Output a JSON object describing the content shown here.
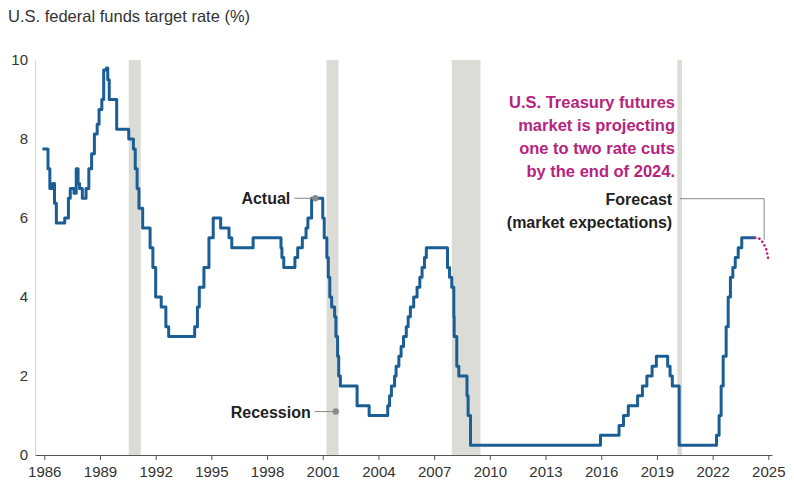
{
  "chart_data": {
    "type": "line",
    "title": "U.S. federal funds target rate (%)",
    "xlim": [
      1985.5,
      2025.2
    ],
    "xticks": [
      1986,
      1989,
      1992,
      1995,
      1998,
      2001,
      2004,
      2007,
      2010,
      2013,
      2016,
      2019,
      2022,
      2025
    ],
    "ylim": [
      0,
      10
    ],
    "yticks": [
      0,
      2,
      4,
      6,
      8,
      10
    ],
    "grid": false,
    "recessions": [
      [
        1990.55,
        1991.2
      ],
      [
        2001.2,
        2001.85
      ],
      [
        2007.95,
        2009.5
      ],
      [
        2020.1,
        2020.35
      ]
    ],
    "series": [
      {
        "type": "step",
        "color": "#1b5e96",
        "line_style": "solid",
        "x": [
          1985.9,
          1986.2,
          1986.3,
          1986.45,
          1986.55,
          1986.65,
          1987.1,
          1987.3,
          1987.4,
          1987.6,
          1987.72,
          1987.82,
          1987.9,
          1988.05,
          1988.25,
          1988.4,
          1988.55,
          1988.7,
          1988.85,
          1988.95,
          1989.1,
          1989.2,
          1989.35,
          1989.42,
          1989.5,
          1989.9,
          1990.55,
          1990.8,
          1990.9,
          1991.0,
          1991.1,
          1991.3,
          1991.7,
          1991.85,
          1992.0,
          1992.3,
          1992.55,
          1992.7,
          1994.1,
          1994.25,
          1994.35,
          1994.6,
          1994.87,
          1995.1,
          1995.5,
          1995.95,
          1996.1,
          1997.25,
          1998.75,
          1998.8,
          1998.9,
          1999.5,
          1999.65,
          1999.9,
          2000.1,
          2000.2,
          2000.4,
          2001.0,
          2001.08,
          2001.22,
          2001.3,
          2001.38,
          2001.48,
          2001.64,
          2001.71,
          2001.8,
          2001.86,
          2001.95,
          2002.85,
          2003.5,
          2004.5,
          2004.6,
          2004.7,
          2004.87,
          2004.95,
          2005.1,
          2005.22,
          2005.35,
          2005.5,
          2005.6,
          2005.72,
          2005.9,
          2006.08,
          2006.23,
          2006.35,
          2006.48,
          2006.58,
          2007.72,
          2007.83,
          2007.95,
          2008.06,
          2008.08,
          2008.22,
          2008.33,
          2008.77,
          2008.83,
          2008.96,
          2015.96,
          2016.96,
          2017.2,
          2017.46,
          2017.96,
          2018.22,
          2018.46,
          2018.74,
          2018.97,
          2019.58,
          2019.71,
          2019.83,
          2020.2,
          2022.21,
          2022.35,
          2022.46,
          2022.57,
          2022.73,
          2022.84,
          2022.96,
          2023.09,
          2023.22,
          2023.38,
          2023.57,
          2024.3
        ],
        "values": [
          7.75,
          7.25,
          6.75,
          6.875,
          6.375,
          5.875,
          6.0,
          6.5,
          6.75,
          6.625,
          7.25,
          6.875,
          6.75,
          6.5,
          6.75,
          7.25,
          7.625,
          8.125,
          8.375,
          8.75,
          9.0,
          9.75,
          9.8,
          9.5,
          9.0,
          8.25,
          8.0,
          7.75,
          7.25,
          6.75,
          6.25,
          5.75,
          5.25,
          4.75,
          4.0,
          3.75,
          3.25,
          3.0,
          3.25,
          3.75,
          4.25,
          4.75,
          5.5,
          6.0,
          5.75,
          5.5,
          5.25,
          5.5,
          5.25,
          5.0,
          4.75,
          5.0,
          5.25,
          5.5,
          5.75,
          6.0,
          6.5,
          6.0,
          5.5,
          5.0,
          4.5,
          4.0,
          3.75,
          3.5,
          3.0,
          2.5,
          2.0,
          1.75,
          1.25,
          1.0,
          1.25,
          1.5,
          1.75,
          2.0,
          2.25,
          2.5,
          2.75,
          3.0,
          3.25,
          3.5,
          3.75,
          4.0,
          4.25,
          4.5,
          4.75,
          5.0,
          5.25,
          4.75,
          4.5,
          4.25,
          3.5,
          3.0,
          2.25,
          2.0,
          1.5,
          1.0,
          0.25,
          0.5,
          0.75,
          1.0,
          1.25,
          1.5,
          1.75,
          2.0,
          2.25,
          2.5,
          2.25,
          2.0,
          1.75,
          0.25,
          0.5,
          1.0,
          1.75,
          2.5,
          3.25,
          4.0,
          4.5,
          4.75,
          5.0,
          5.25,
          5.5,
          5.5
        ]
      },
      {
        "type": "line",
        "color": "#b5247e",
        "line_style": "dotted",
        "x": [
          2024.3,
          2024.45,
          2024.6,
          2024.75,
          2024.9,
          2025.0
        ],
        "values": [
          5.5,
          5.5,
          5.45,
          5.35,
          5.2,
          4.95
        ]
      }
    ],
    "annotations": [
      {
        "text": "Actual",
        "x": 2000.6,
        "y": 6.5
      },
      {
        "text": "Recession",
        "x": 2001.7,
        "y": 1.1
      },
      {
        "lines": [
          "Forecast",
          "(market expectations)"
        ],
        "x": 2024.78,
        "y": 5.4
      },
      {
        "lines": [
          "U.S. Treasury futures",
          "market is projecting",
          "one to two rate cuts",
          "by the end of 2024."
        ],
        "color": "#b5247e"
      }
    ]
  }
}
